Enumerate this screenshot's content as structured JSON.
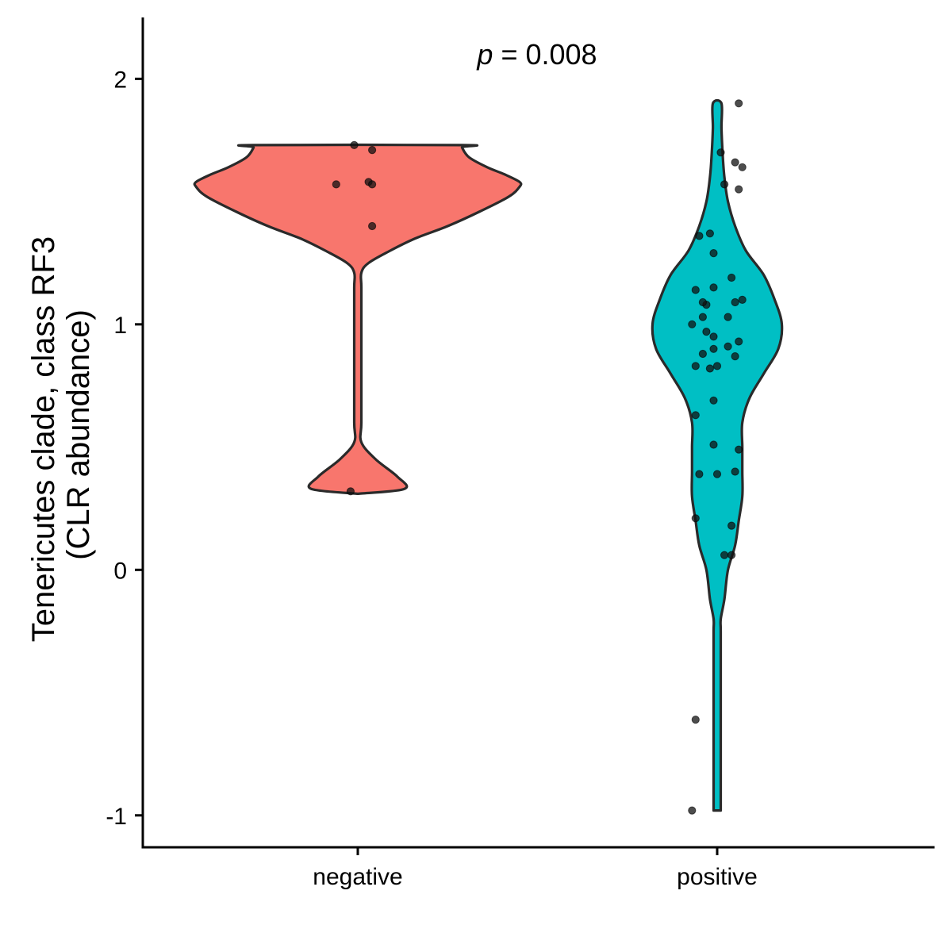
{
  "chart_data": {
    "type": "violin",
    "categories": [
      "negative",
      "positive"
    ],
    "ylabel_lines": [
      "Tenericutes clade, class RF3",
      "(CLR abundance)"
    ],
    "xlabel": "",
    "ylim": [
      -1.13,
      2.25
    ],
    "yticks": [
      -1,
      0,
      1,
      2
    ],
    "ytick_labels": [
      "-1",
      "0",
      "1",
      "2"
    ],
    "annotation": {
      "italic": "p",
      "text": " = 0.008"
    },
    "colors": {
      "negative": "#F8766D",
      "positive": "#00BFC4",
      "outline": "#2a2a2a",
      "points": "#111111"
    },
    "violins": [
      {
        "group": "negative",
        "profile": [
          [
            0.31,
            0.0
          ],
          [
            0.33,
            0.13
          ],
          [
            0.38,
            0.11
          ],
          [
            0.45,
            0.05
          ],
          [
            0.52,
            0.01
          ],
          [
            0.6,
            0.01
          ],
          [
            0.8,
            0.01
          ],
          [
            1.0,
            0.01
          ],
          [
            1.15,
            0.01
          ],
          [
            1.21,
            0.01
          ],
          [
            1.25,
            0.03
          ],
          [
            1.3,
            0.09
          ],
          [
            1.35,
            0.16
          ],
          [
            1.4,
            0.25
          ],
          [
            1.46,
            0.34
          ],
          [
            1.52,
            0.42
          ],
          [
            1.56,
            0.45
          ],
          [
            1.58,
            0.45
          ],
          [
            1.61,
            0.41
          ],
          [
            1.64,
            0.36
          ],
          [
            1.68,
            0.31
          ],
          [
            1.72,
            0.29
          ],
          [
            1.73,
            0.29
          ]
        ],
        "points": [
          [
            -0.01,
            1.73
          ],
          [
            0.04,
            1.71
          ],
          [
            -0.06,
            1.57
          ],
          [
            0.03,
            1.58
          ],
          [
            0.04,
            1.57
          ],
          [
            0.04,
            1.4
          ],
          [
            -0.02,
            0.32
          ]
        ]
      },
      {
        "group": "positive",
        "profile": [
          [
            -0.98,
            0.01
          ],
          [
            -0.8,
            0.01
          ],
          [
            -0.6,
            0.01
          ],
          [
            -0.4,
            0.01
          ],
          [
            -0.25,
            0.01
          ],
          [
            -0.2,
            0.01
          ],
          [
            -0.12,
            0.02
          ],
          [
            0.0,
            0.03
          ],
          [
            0.1,
            0.05
          ],
          [
            0.2,
            0.06
          ],
          [
            0.3,
            0.07
          ],
          [
            0.4,
            0.07
          ],
          [
            0.5,
            0.07
          ],
          [
            0.6,
            0.07
          ],
          [
            0.7,
            0.09
          ],
          [
            0.8,
            0.13
          ],
          [
            0.9,
            0.17
          ],
          [
            1.0,
            0.18
          ],
          [
            1.1,
            0.16
          ],
          [
            1.2,
            0.13
          ],
          [
            1.3,
            0.08
          ],
          [
            1.4,
            0.05
          ],
          [
            1.5,
            0.03
          ],
          [
            1.6,
            0.02
          ],
          [
            1.7,
            0.015
          ],
          [
            1.8,
            0.012
          ],
          [
            1.9,
            0.012
          ]
        ],
        "points": [
          [
            0.06,
            1.9
          ],
          [
            0.01,
            1.7
          ],
          [
            0.05,
            1.66
          ],
          [
            0.07,
            1.64
          ],
          [
            0.02,
            1.57
          ],
          [
            0.06,
            1.55
          ],
          [
            -0.05,
            1.36
          ],
          [
            -0.02,
            1.37
          ],
          [
            -0.01,
            1.29
          ],
          [
            0.04,
            1.19
          ],
          [
            -0.06,
            1.14
          ],
          [
            -0.01,
            1.15
          ],
          [
            0.05,
            1.09
          ],
          [
            0.07,
            1.1
          ],
          [
            -0.03,
            1.08
          ],
          [
            -0.04,
            1.09
          ],
          [
            -0.04,
            1.03
          ],
          [
            -0.07,
            1.0
          ],
          [
            0.03,
            1.03
          ],
          [
            -0.03,
            0.97
          ],
          [
            -0.01,
            0.95
          ],
          [
            0.06,
            0.93
          ],
          [
            0.03,
            0.91
          ],
          [
            -0.01,
            0.9
          ],
          [
            -0.04,
            0.88
          ],
          [
            0.05,
            0.87
          ],
          [
            -0.02,
            0.82
          ],
          [
            -0.0,
            0.83
          ],
          [
            -0.06,
            0.83
          ],
          [
            -0.01,
            0.69
          ],
          [
            -0.06,
            0.63
          ],
          [
            -0.01,
            0.51
          ],
          [
            0.06,
            0.49
          ],
          [
            -0.05,
            0.39
          ],
          [
            0.0,
            0.39
          ],
          [
            0.05,
            0.4
          ],
          [
            -0.06,
            0.21
          ],
          [
            0.04,
            0.18
          ],
          [
            0.02,
            0.06
          ],
          [
            0.04,
            0.06
          ],
          [
            -0.06,
            -0.61
          ],
          [
            -0.07,
            -0.98
          ]
        ]
      }
    ]
  }
}
